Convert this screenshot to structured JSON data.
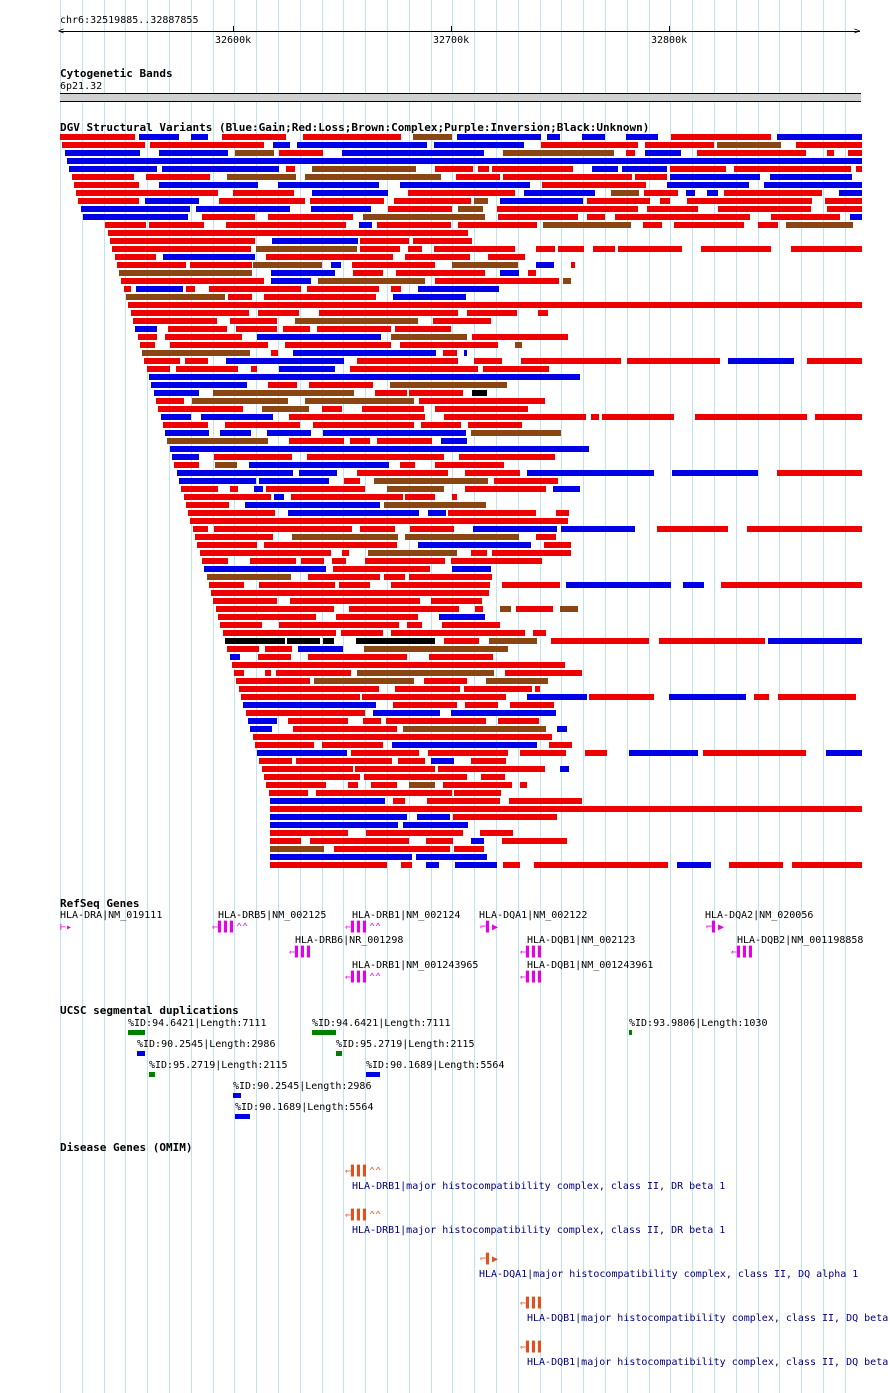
{
  "ruler": {
    "position": "chr6:32519885..32887855",
    "ticks": [
      "32600k",
      "32700k",
      "32800k"
    ]
  },
  "cytoband": {
    "title": "Cytogenetic Bands",
    "band": "6p21.32"
  },
  "dgv": {
    "title": "DGV Structural Variants (Blue:Gain;Red:Loss;Brown:Complex;Purple:Inversion;Black:Unknown)",
    "colors": {
      "gain": "#0000e6",
      "loss": "#ee0000",
      "complex": "#8b4513",
      "inversion": "#800080",
      "unknown": "#000000"
    }
  },
  "refseq": {
    "title": "RefSeq Genes",
    "color": "#e600e6",
    "genes": [
      {
        "label": "HLA-DRA|NM_019111",
        "glyph": "⊢▸"
      },
      {
        "label": "HLA-DRB5|NM_002125",
        "glyph": "⇐▌▌▌⌃⌃"
      },
      {
        "label": "HLA-DRB6|NR_001298",
        "glyph": "⇐▌▌▌"
      },
      {
        "label": "HLA-DRB1|NM_002124",
        "glyph": "⇐▌▌▌⌃⌃"
      },
      {
        "label": "HLA-DRB1|NM_001243965",
        "glyph": "⇐▌▌▌⌃⌃"
      },
      {
        "label": "HLA-DQA1|NM_002122",
        "glyph": "⌐▌▶"
      },
      {
        "label": "HLA-DQB1|NM_002123",
        "glyph": "⇐▌▌▌"
      },
      {
        "label": "HLA-DQB1|NM_001243961",
        "glyph": "⇐▌▌▌"
      },
      {
        "label": "HLA-DQA2|NM_020056",
        "glyph": "⌐▌▶"
      },
      {
        "label": "HLA-DQB2|NM_001198858",
        "glyph": "⇐▌▌▌"
      }
    ]
  },
  "segdups": {
    "title": "UCSC segmental duplications",
    "items": [
      {
        "label": "%ID:94.6421|Length:7111",
        "color": "#008000"
      },
      {
        "label": "%ID:94.6421|Length:7111",
        "color": "#008000"
      },
      {
        "label": "%ID:93.9806|Length:1030",
        "color": "#008000"
      },
      {
        "label": "%ID:90.2545|Length:2986",
        "color": "#0000e6"
      },
      {
        "label": "%ID:95.2719|Length:2115",
        "color": "#008000"
      },
      {
        "label": "%ID:95.2719|Length:2115",
        "color": "#008000"
      },
      {
        "label": "%ID:90.1689|Length:5564",
        "color": "#0000e6"
      },
      {
        "label": "%ID:90.2545|Length:2986",
        "color": "#0000e6"
      },
      {
        "label": "%ID:90.1689|Length:5564",
        "color": "#0000e6"
      }
    ]
  },
  "omim": {
    "title": "Disease Genes (OMIM)",
    "color": "#e05020",
    "items": [
      {
        "label": "HLA-DRB1|major histocompatibility complex, class II, DR beta 1",
        "glyph": "⇐▌▌▌⌃⌃"
      },
      {
        "label": "HLA-DRB1|major histocompatibility complex, class II, DR beta 1",
        "glyph": "⇐▌▌▌⌃⌃"
      },
      {
        "label": "HLA-DQA1|major histocompatibility complex, class II, DQ alpha 1",
        "glyph": "⌐▌▶"
      },
      {
        "label": "HLA-DQB1|major histocompatibility complex, class II, DQ beta",
        "glyph": "⇐▌▌▌"
      },
      {
        "label": "HLA-DQB1|major histocompatibility complex, class II, DQ beta",
        "glyph": "⇐▌▌▌"
      }
    ]
  }
}
